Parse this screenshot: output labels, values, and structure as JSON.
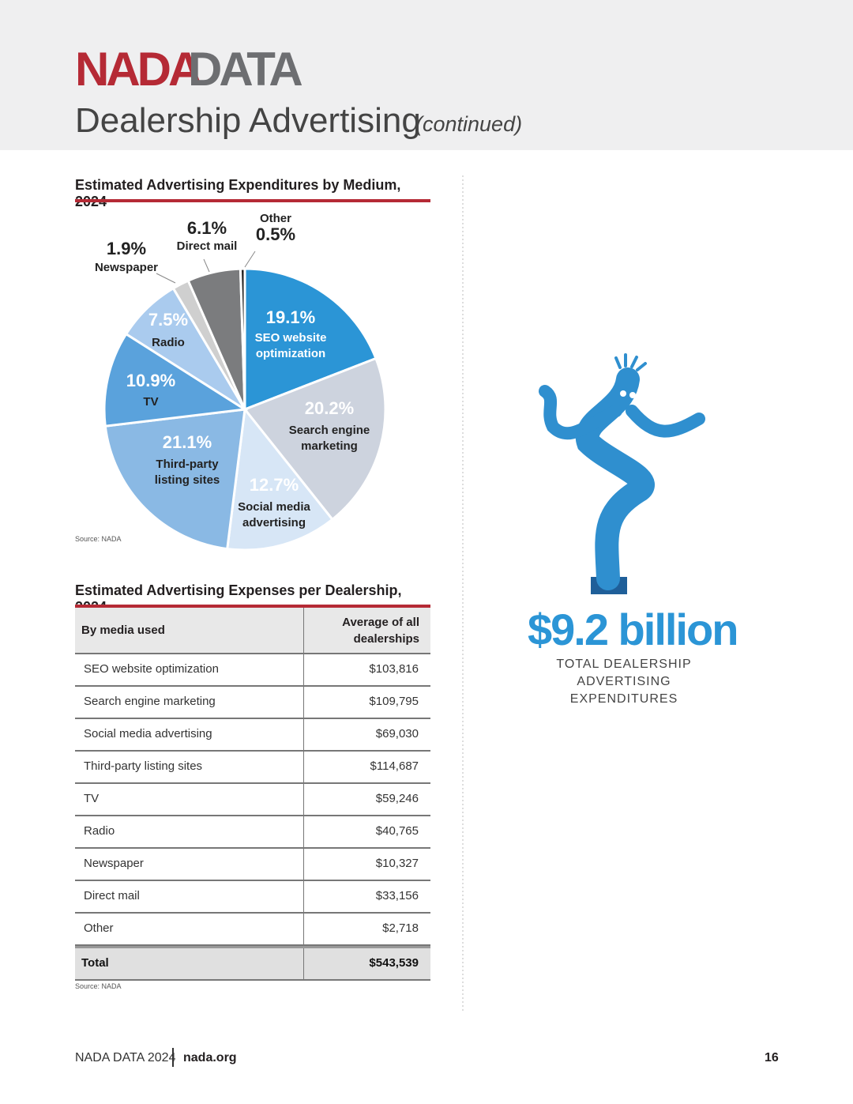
{
  "header": {
    "brand_primary": "NADA",
    "brand_secondary": "DATA",
    "title": "Dealership Advertising",
    "subtitle": "(continued)"
  },
  "chart_data": {
    "type": "pie",
    "title": "Estimated Advertising Expenditures by Medium, 2024",
    "categories": [
      "SEO website optimization",
      "Search engine marketing",
      "Social media advertising",
      "Third-party listing sites",
      "TV",
      "Radio",
      "Newspaper",
      "Direct mail",
      "Other"
    ],
    "values": [
      19.1,
      20.2,
      12.7,
      21.1,
      10.9,
      7.5,
      1.9,
      6.1,
      0.5
    ],
    "value_labels": [
      "19.1%",
      "20.2%",
      "12.7%",
      "21.1%",
      "10.9%",
      "7.5%",
      "1.9%",
      "6.1%",
      "0.5%"
    ],
    "colors": [
      "#2b95d6",
      "#cdd3de",
      "#d7e6f6",
      "#8ab9e4",
      "#5aa2dc",
      "#aacbee",
      "#cfcfcf",
      "#7b7c7e",
      "#222222"
    ],
    "source": "Source: NADA"
  },
  "table": {
    "title": "Estimated Advertising Expenses per Dealership, 2024",
    "columns": [
      "By media used",
      "Average of all dealerships"
    ],
    "rows": [
      [
        "SEO website optimization",
        "$103,816"
      ],
      [
        "Search engine marketing",
        "$109,795"
      ],
      [
        "Social media advertising",
        "$69,030"
      ],
      [
        "Third-party listing sites",
        "$114,687"
      ],
      [
        "TV",
        "$59,246"
      ],
      [
        "Radio",
        "$40,765"
      ],
      [
        "Newspaper",
        "$10,327"
      ],
      [
        "Direct mail",
        "$33,156"
      ],
      [
        "Other",
        "$2,718"
      ]
    ],
    "total": [
      "Total",
      "$543,539"
    ],
    "source": "Source: NADA"
  },
  "highlight": {
    "value": "$9.2 billion",
    "caption": "TOTAL DEALERSHIP ADVERTISING EXPENDITURES"
  },
  "footer": {
    "publication": "NADA DATA 2024",
    "website": "nada.org",
    "page": "16"
  }
}
